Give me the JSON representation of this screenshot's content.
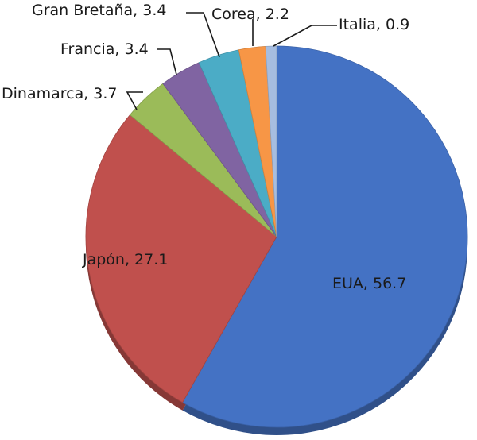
{
  "chart_data": {
    "type": "pie",
    "title": "",
    "slices": [
      {
        "label": "EUA",
        "value": 56.7,
        "display": "EUA, 56.7",
        "color": "#4472C4"
      },
      {
        "label": "Japón",
        "value": 27.1,
        "display": "Japón, 27.1",
        "color": "#C0504D"
      },
      {
        "label": "Dinamarca",
        "value": 3.7,
        "display": "Dinamarca, 3.7",
        "color": "#9BBB59"
      },
      {
        "label": "Francia",
        "value": 3.4,
        "display": "Francia, 3.4",
        "color": "#8064A2"
      },
      {
        "label": "Gran Bretaña",
        "value": 3.4,
        "display": "Gran Bretaña, 3.4",
        "color": "#4BACC6"
      },
      {
        "label": "Corea",
        "value": 2.2,
        "display": "Corea, 2.2",
        "color": "#F79646"
      },
      {
        "label": "Italia",
        "value": 0.9,
        "display": "Italia, 0.9",
        "color": "#A6BDE0"
      }
    ]
  }
}
